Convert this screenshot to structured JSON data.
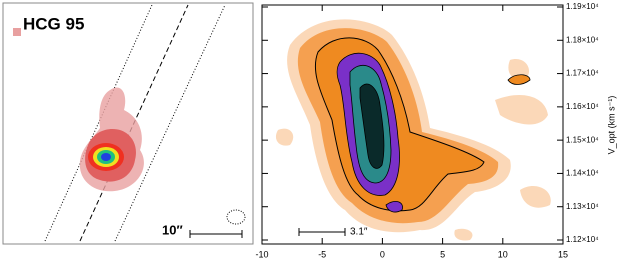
{
  "chart_data": {
    "type": "pv-diagram",
    "panel_label": "HCG 95",
    "image_scale_label": "10″",
    "pv_scale_label": "3.1″",
    "y_label": "V_opt (km s⁻¹)",
    "xlim": [
      -10,
      15
    ],
    "xticks": [
      -10,
      -5,
      0,
      5,
      10,
      15
    ],
    "ylim": [
      11188,
      11906
    ],
    "yticks": [
      {
        "value": 11200,
        "label": "1.12×10⁴"
      },
      {
        "value": 11300,
        "label": "1.13×10⁴"
      },
      {
        "value": 11400,
        "label": "1.14×10⁴"
      },
      {
        "value": 11500,
        "label": "1.15×10⁴"
      },
      {
        "value": 11600,
        "label": "1.16×10⁴"
      },
      {
        "value": 11700,
        "label": "1.17×10⁴"
      },
      {
        "value": 11800,
        "label": "1.18×10⁴"
      },
      {
        "value": 11900,
        "label": "1.19×10⁴"
      }
    ]
  }
}
